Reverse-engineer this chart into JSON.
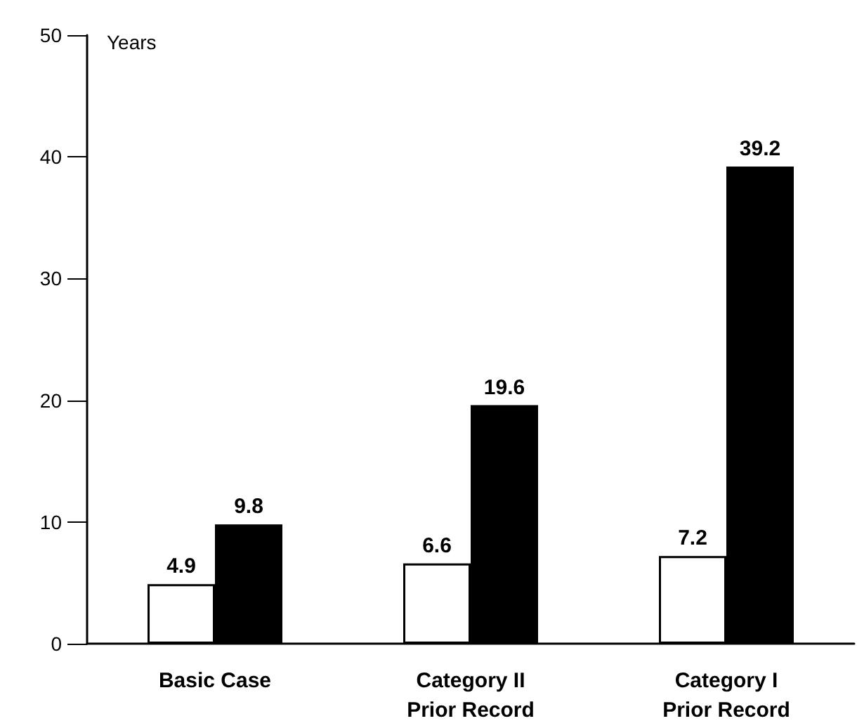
{
  "chart_data": {
    "type": "bar",
    "ylabel": "Years",
    "categories": [
      "Basic Case",
      "Category II\nPrior Record",
      "Category I\nPrior Record"
    ],
    "series": [
      {
        "color": "#ffffff",
        "values": [
          4.9,
          6.6,
          7.2
        ]
      },
      {
        "color": "#000000",
        "values": [
          9.8,
          19.6,
          39.2
        ]
      }
    ],
    "ylim": [
      0,
      50
    ],
    "yticks": [
      0,
      10,
      20,
      30,
      40,
      50
    ],
    "grid": false,
    "data_labels": true
  }
}
